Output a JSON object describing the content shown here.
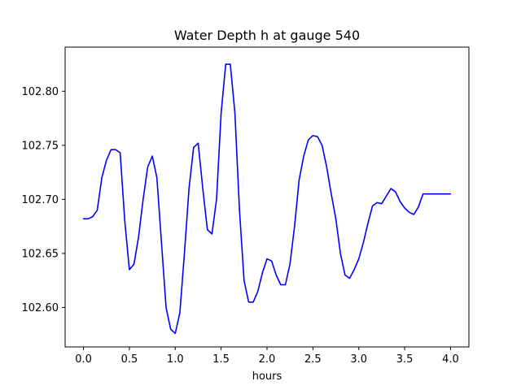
{
  "chart_data": {
    "type": "line",
    "title": "Water Depth h at gauge 540",
    "xlabel": "hours",
    "ylabel": "",
    "xlim": [
      -0.2,
      4.2
    ],
    "ylim": [
      102.5635,
      102.8408
    ],
    "xticks": [
      0.0,
      0.5,
      1.0,
      1.5,
      2.0,
      2.5,
      3.0,
      3.5,
      4.0
    ],
    "xtick_labels": [
      "0.0",
      "0.5",
      "1.0",
      "1.5",
      "2.0",
      "2.5",
      "3.0",
      "3.5",
      "4.0"
    ],
    "yticks": [
      102.6,
      102.65,
      102.7,
      102.75,
      102.8
    ],
    "ytick_labels": [
      "102.60",
      "102.65",
      "102.70",
      "102.75",
      "102.80"
    ],
    "grid": false,
    "legend": "none",
    "series": [
      {
        "color": "#0000ff",
        "x": [
          0.0,
          0.05,
          0.1,
          0.15,
          0.2,
          0.25,
          0.3,
          0.35,
          0.4,
          0.45,
          0.5,
          0.55,
          0.6,
          0.65,
          0.7,
          0.75,
          0.8,
          0.85,
          0.9,
          0.95,
          1.0,
          1.05,
          1.1,
          1.15,
          1.2,
          1.25,
          1.3,
          1.35,
          1.4,
          1.45,
          1.5,
          1.55,
          1.6,
          1.65,
          1.7,
          1.75,
          1.8,
          1.85,
          1.9,
          1.95,
          2.0,
          2.05,
          2.1,
          2.15,
          2.2,
          2.25,
          2.3,
          2.35,
          2.4,
          2.45,
          2.5,
          2.55,
          2.6,
          2.65,
          2.7,
          2.75,
          2.8,
          2.85,
          2.9,
          2.95,
          3.0,
          3.05,
          3.1,
          3.15,
          3.2,
          3.25,
          3.3,
          3.35,
          3.4,
          3.45,
          3.5,
          3.55,
          3.6,
          3.65,
          3.7,
          3.75,
          3.8,
          3.85,
          3.9,
          3.95,
          4.0
        ],
        "y": [
          102.682,
          102.682,
          102.684,
          102.69,
          102.72,
          102.736,
          102.746,
          102.746,
          102.743,
          102.68,
          102.635,
          102.64,
          102.665,
          102.7,
          102.73,
          102.74,
          102.72,
          102.66,
          102.6,
          102.58,
          102.576,
          102.595,
          102.65,
          102.71,
          102.748,
          102.752,
          102.71,
          102.672,
          102.668,
          102.7,
          102.78,
          102.825,
          102.825,
          102.78,
          102.69,
          102.625,
          102.605,
          102.605,
          102.615,
          102.632,
          102.645,
          102.643,
          102.63,
          102.621,
          102.621,
          102.64,
          102.675,
          102.718,
          102.74,
          102.755,
          102.759,
          102.758,
          102.75,
          102.73,
          102.705,
          102.682,
          102.65,
          102.63,
          102.627,
          102.635,
          102.645,
          102.66,
          102.678,
          102.694,
          102.697,
          102.696,
          102.703,
          102.71,
          102.707,
          102.698,
          102.692,
          102.688,
          102.686,
          102.693,
          102.705,
          102.705,
          102.705,
          102.705,
          102.705,
          102.705,
          102.705
        ]
      }
    ]
  }
}
